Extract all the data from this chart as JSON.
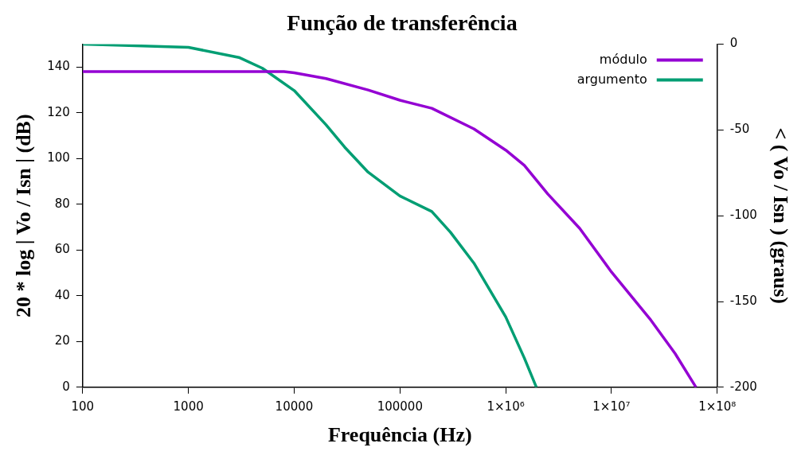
{
  "chart_data": {
    "type": "line",
    "title": "Função de transferência",
    "xlabel": "Frequência (Hz)",
    "ylabel": "20 * log | Vo / Isn | (dB)",
    "y2label": "< ( Vo / Isn ) (graus)",
    "log": "x",
    "xlim": [
      100,
      100000000
    ],
    "xticks": [
      100,
      1000,
      10000,
      100000,
      {
        "value": 1000000,
        "label": "1×10⁶"
      },
      {
        "value": 10000000,
        "label": "1×10⁷"
      },
      {
        "value": 100000000,
        "label": "1×10⁸"
      }
    ],
    "ylim": [
      0,
      150
    ],
    "yticks": [
      0,
      20,
      40,
      60,
      80,
      100,
      120,
      140
    ],
    "y2lim": [
      -200,
      0
    ],
    "y2ticks": [
      -200,
      -150,
      -100,
      -50,
      0
    ],
    "grid": false,
    "legend": "top right",
    "marker": "none",
    "line_style": "solid",
    "series": [
      {
        "name": "módulo",
        "color": "#9400d3",
        "x": [
          100,
          1000,
          8000,
          10000,
          20000,
          50000,
          100000,
          200000,
          500000,
          1000000,
          1500000,
          2500000,
          5000000,
          10000000,
          23000000,
          40000000,
          63000000
        ],
        "values": [
          138,
          138,
          138,
          137.5,
          135,
          130,
          125.5,
          122,
          113,
          103.7,
          97,
          84.5,
          69.5,
          50.4,
          30,
          14.7,
          0
        ]
      },
      {
        "name": "argumento",
        "color": "#009e73",
        "axis": "y2",
        "x": [
          100,
          1000,
          3000,
          5000,
          10000,
          20000,
          30000,
          50000,
          100000,
          200000,
          300000,
          500000,
          1000000,
          1500000,
          1950000
        ],
        "values": [
          0,
          -1.8,
          -7.7,
          -14,
          -27,
          -47,
          -60,
          -74.6,
          -88.5,
          -97.5,
          -109.6,
          -127.6,
          -159,
          -183,
          -200
        ]
      }
    ]
  }
}
